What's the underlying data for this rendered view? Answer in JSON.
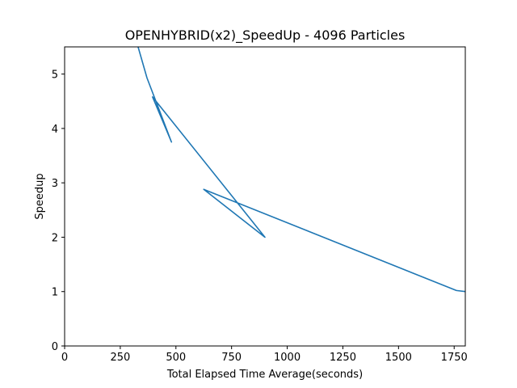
{
  "chart_data": {
    "type": "line",
    "title": "OPENHYBRID(x2)_SpeedUp - 4096 Particles",
    "xlabel": "Total Elapsed Time Average(seconds)",
    "ylabel": "Speedup",
    "xlim": [
      0,
      1800
    ],
    "ylim": [
      0,
      5.5
    ],
    "xticks": [
      0,
      250,
      500,
      750,
      1000,
      1250,
      1500,
      1750
    ],
    "yticks": [
      0,
      1,
      2,
      3,
      4,
      5
    ],
    "grid": false,
    "series": [
      {
        "color": "#1f77b4",
        "points": [
          [
            1800,
            1.0
          ],
          [
            1760,
            1.02
          ],
          [
            625,
            2.88
          ],
          [
            900,
            2.0
          ],
          [
            395,
            4.58
          ],
          [
            480,
            3.75
          ],
          [
            370,
            4.93
          ],
          [
            323,
            5.6
          ]
        ]
      }
    ]
  }
}
